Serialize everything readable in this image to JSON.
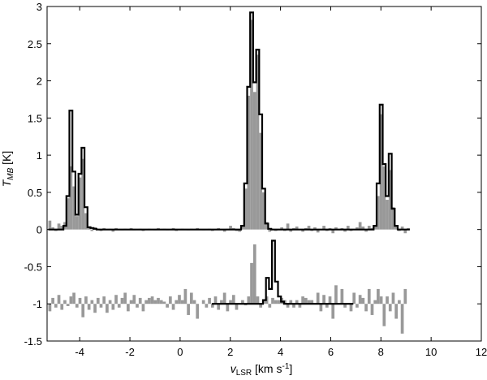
{
  "chart_data": {
    "type": "bar",
    "xlabel": "v",
    "xlabel_sub": "LSR",
    "xlabel_units": " [km s",
    "xlabel_exp": "-1",
    "xlabel_close": "]",
    "ylabel": "T",
    "ylabel_sub": "MB",
    "ylabel_units": " [K]",
    "xlim": [
      -5.3,
      12
    ],
    "ylim": [
      -1.5,
      3
    ],
    "xticks": [
      -4,
      -2,
      0,
      2,
      4,
      6,
      8,
      10,
      12
    ],
    "yticks": [
      -1.5,
      -1,
      -0.5,
      0,
      0.5,
      1,
      1.5,
      2,
      2.5,
      3
    ],
    "bin_width": 0.12,
    "observed_color": "#999999",
    "model_color": "#000000",
    "upper_series": {
      "name": "",
      "x_start": -5.25,
      "observed": [
        0.12,
        0.03,
        -0.02,
        0.08,
        0.05,
        0.1,
        0.42,
        0.85,
        0.58,
        0.18,
        0.7,
        0.95,
        0.22,
        0.04,
        -0.02,
        0.03,
        0.01,
        -0.02,
        0.02,
        0.0,
        0.01,
        -0.03,
        0.02,
        0.0,
        -0.01,
        0.01,
        0.0,
        0.02,
        -0.01,
        0.0,
        0.01,
        -0.02,
        0.0,
        0.01,
        0.0,
        -0.01,
        0.02,
        0.0,
        0.01,
        -0.01,
        0.0,
        0.02,
        -0.02,
        0.0,
        0.01,
        0.0,
        -0.01,
        0.01,
        0.0,
        0.02,
        0.0,
        -0.01,
        0.0,
        0.01,
        -0.02,
        0.0,
        0.02,
        0.0,
        -0.03,
        0.01,
        0.05,
        0.02,
        -0.02,
        -0.03,
        0.04,
        0.55,
        1.8,
        2.82,
        1.85,
        2.35,
        1.3,
        0.5,
        0.1,
        -0.03,
        0.01,
        -0.02,
        0.0,
        0.03,
        -0.02,
        0.08,
        -0.03,
        0.02,
        0.04,
        0.0,
        -0.03,
        0.02,
        0.05,
        -0.02,
        0.03,
        -0.04,
        0.0,
        0.05,
        -0.02,
        0.02,
        -0.05,
        0.03,
        0.0,
        0.02,
        -0.03,
        0.05,
        -0.02,
        0.0,
        0.03,
        0.1,
        0.04,
        -0.03,
        0.05,
        0.02,
        0.06,
        0.45,
        1.55,
        0.85,
        0.4,
        0.8,
        0.3,
        0.05,
        -0.02,
        0.04,
        -0.05,
        0.02
      ],
      "model": [
        0.0,
        0.0,
        0.0,
        0.0,
        0.0,
        0.05,
        0.45,
        1.6,
        0.78,
        0.2,
        0.75,
        1.1,
        0.3,
        0.03,
        0.02,
        0.01,
        0.0,
        0.0,
        0.0,
        0.0,
        0.0,
        0.0,
        0.0,
        0.0,
        0.0,
        0.0,
        0.0,
        0.0,
        0.0,
        0.0,
        0.0,
        0.0,
        0.0,
        0.0,
        0.0,
        0.0,
        0.0,
        0.0,
        0.0,
        0.0,
        0.0,
        0.0,
        0.0,
        0.0,
        0.0,
        0.0,
        0.0,
        0.0,
        0.0,
        0.0,
        0.0,
        0.0,
        0.0,
        0.0,
        0.0,
        0.0,
        0.0,
        0.0,
        0.0,
        0.0,
        0.0,
        0.0,
        0.0,
        0.0,
        0.05,
        0.62,
        1.92,
        2.92,
        1.98,
        2.42,
        1.55,
        0.55,
        0.08,
        0.01,
        0.0,
        0.0,
        0.0,
        0.0,
        0.0,
        0.0,
        0.0,
        0.0,
        0.0,
        0.0,
        0.0,
        0.0,
        0.0,
        0.0,
        0.0,
        0.0,
        0.0,
        0.0,
        0.0,
        0.0,
        0.0,
        0.0,
        0.0,
        0.0,
        0.0,
        0.0,
        0.0,
        0.0,
        0.0,
        0.0,
        0.0,
        0.0,
        0.0,
        0.0,
        0.05,
        0.62,
        1.68,
        0.88,
        0.45,
        1.02,
        0.28,
        0.05,
        0.0,
        0.0,
        0.0,
        0.0
      ]
    },
    "lower_series": {
      "name": "",
      "x_start": -5.25,
      "offset": -1.0,
      "observed": [
        -0.1,
        0.08,
        -0.05,
        0.12,
        -0.08,
        0.05,
        -0.03,
        0.1,
        0.15,
        -0.05,
        0.08,
        -0.18,
        0.1,
        -0.08,
        0.05,
        -0.12,
        0.08,
        -0.05,
        0.1,
        -0.12,
        0.05,
        -0.08,
        0.12,
        -0.05,
        0.08,
        0.15,
        -0.1,
        0.05,
        0.12,
        -0.05,
        0.08,
        -0.1,
        0.05,
        0.08,
        0.1,
        0.05,
        0.08,
        0.05,
        0.03,
        -0.05,
        0.1,
        -0.08,
        0.05,
        0.12,
        0.05,
        0.2,
        -0.15,
        0.15,
        0.05,
        -0.2,
        0.0,
        0.05,
        -0.05,
        0.08,
        -0.05,
        0.1,
        -0.08,
        0.05,
        0.15,
        -0.1,
        0.05,
        0.12,
        -0.08,
        0.0,
        0.05,
        -0.02,
        0.1,
        0.55,
        0.8,
        0.1,
        -0.05,
        0.05,
        0.1,
        -0.05,
        0.08,
        0.05,
        0.05,
        0.08,
        0.05,
        -0.05,
        0.05,
        -0.05,
        0.05,
        -0.05,
        0.1,
        0.08,
        0.05,
        0.05,
        0.0,
        0.15,
        -0.1,
        0.12,
        -0.05,
        0.1,
        -0.2,
        0.25,
        0.0,
        0.2,
        -0.05,
        0.0,
        -0.1,
        0.15,
        -0.05,
        0.12,
        0.08,
        -0.1,
        0.2,
        -0.15,
        0.05,
        0.2,
        0.1,
        -0.3,
        0.1,
        -0.1,
        0.15,
        -0.2,
        0.05,
        -0.4,
        0.2,
        0.0
      ],
      "model_x_start": 1.26,
      "model_x_end": 6.93,
      "model": [
        0.0,
        0.0,
        0.0,
        0.0,
        0.0,
        0.0,
        0.0,
        0.0,
        0.0,
        0.0,
        0.0,
        0.0,
        0.0,
        0.0,
        0.0,
        0.0,
        0.0,
        0.05,
        0.35,
        0.2,
        0.85,
        0.3,
        0.1,
        0.03,
        0.0,
        0.0,
        0.0,
        0.0,
        0.0,
        0.0,
        0.0,
        0.0,
        0.0,
        0.0,
        0.0,
        0.0,
        0.0,
        0.0,
        0.0,
        0.0,
        0.0,
        0.0,
        0.0,
        0.0,
        0.0,
        0.0,
        0.0
      ]
    }
  }
}
